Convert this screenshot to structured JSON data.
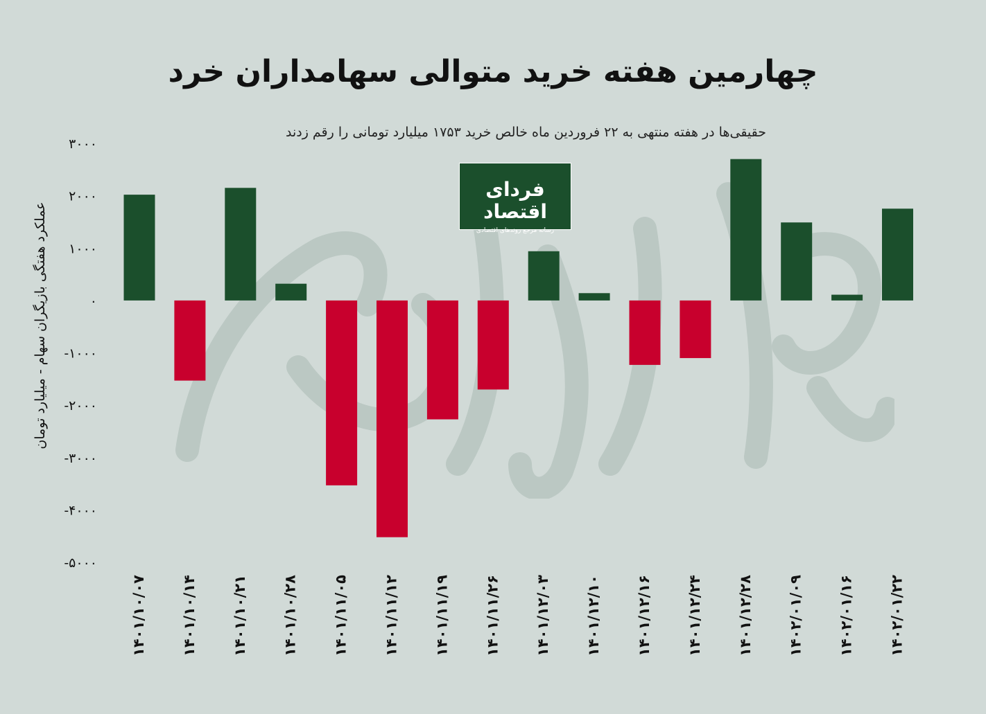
{
  "title": "چهارمین هفته خرید متوالی سهامداران خرد",
  "subtitle": "حقیقی‌ها در هفته منتهی به ۲۲ فروردین ماه خالص خرید ۱۷۵۳ میلیارد تومانی را رقم زدند",
  "logo": {
    "name": "فردای اقتصاد",
    "tagline": "رسانه مرجع روندهای اقتصادی"
  },
  "colors": {
    "positive": "#1b4f2c",
    "negative": "#c8002d",
    "background": "#d1dad7"
  },
  "chart_data": {
    "type": "bar",
    "title": "چهارمین هفته خرید متوالی سهامداران خرد",
    "subtitle": "حقیقی‌ها در هفته منتهی به ۲۲ فروردین ماه خالص خرید ۱۷۵۳ میلیارد تومانی را رقم زدند",
    "ylabel": "عملکرد هفتگی بازیگران سهام - میلیارد تومان",
    "xlabel": "",
    "ylim": [
      -5000,
      3000
    ],
    "yticks": [
      3000,
      2000,
      1000,
      0,
      -1000,
      -2000,
      -3000,
      -4000,
      -5000
    ],
    "ytick_labels": [
      "۳۰۰۰",
      "۲۰۰۰",
      "۱۰۰۰",
      "۰",
      "-۱۰۰۰",
      "-۲۰۰۰",
      "-۳۰۰۰",
      "-۴۰۰۰",
      "-۵۰۰۰"
    ],
    "categories": [
      "۱۴۰۱/۱۰/۰۷",
      "۱۴۰۱/۱۰/۱۴",
      "۱۴۰۱/۱۰/۲۱",
      "۱۴۰۱/۱۰/۲۸",
      "۱۴۰۱/۱۱/۰۵",
      "۱۴۰۱/۱۱/۱۲",
      "۱۴۰۱/۱۱/۱۹",
      "۱۴۰۱/۱۱/۲۶",
      "۱۴۰۱/۱۲/۰۳",
      "۱۴۰۱/۱۲/۱۰",
      "۱۴۰۱/۱۲/۱۶",
      "۱۴۰۱/۱۲/۲۴",
      "۱۴۰۱/۱۲/۲۸",
      "۱۴۰۲/۰۱/۰۹",
      "۱۴۰۲/۰۱/۱۶",
      "۱۴۰۲/۰۱/۲۲"
    ],
    "values": [
      2020,
      -1530,
      2150,
      320,
      -3530,
      -4520,
      -2270,
      -1700,
      940,
      140,
      -1230,
      -1100,
      2700,
      1490,
      110,
      1753
    ],
    "grid": false,
    "legend": "none"
  }
}
